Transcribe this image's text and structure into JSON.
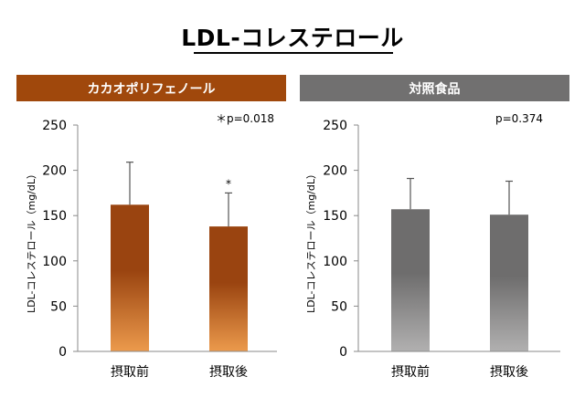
{
  "title": "LDL-コレステロール",
  "chart_data": [
    {
      "type": "bar",
      "header": "カカオポリフェノール",
      "header_color": "#a0480c",
      "bar_gradient": [
        "#9a4410",
        "#ec9a4c"
      ],
      "ylabel": "LDL-コレステロール（mg/dL）",
      "ylim": [
        0,
        250
      ],
      "yticks": [
        "0",
        "50",
        "100",
        "150",
        "200",
        "250"
      ],
      "categories": [
        "摂取前",
        "摂取後"
      ],
      "values": [
        162,
        138
      ],
      "error_upper": [
        209,
        175
      ],
      "bar_labels": [
        "",
        "*"
      ],
      "annotation": "＊p=0.018"
    },
    {
      "type": "bar",
      "header": "対照食品",
      "header_color": "#717070",
      "bar_gradient": [
        "#6e6d6d",
        "#b1b0b0"
      ],
      "ylabel": "LDL-コレステロール（mg/dL）",
      "ylim": [
        0,
        250
      ],
      "yticks": [
        "0",
        "50",
        "100",
        "150",
        "200",
        "250"
      ],
      "categories": [
        "摂取前",
        "摂取後"
      ],
      "values": [
        157,
        151
      ],
      "error_upper": [
        191,
        188
      ],
      "bar_labels": [
        "",
        ""
      ],
      "annotation": "p=0.374"
    }
  ]
}
